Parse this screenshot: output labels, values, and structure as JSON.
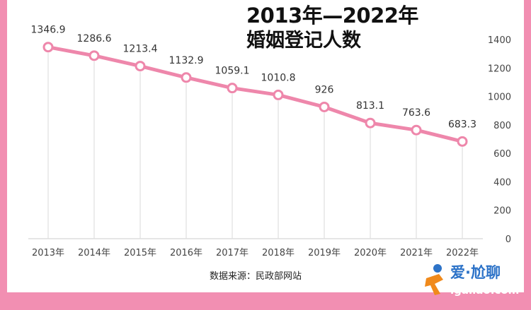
{
  "title_line1": "2013年—2022年",
  "title_line2": "婚姻登记人数",
  "source": "数据来源：民政部网站",
  "watermark": {
    "cn": "爱·尬聊",
    "url": "igaliao.com"
  },
  "colors": {
    "line": "#ee87ab",
    "frame": "#f28fb2",
    "grid": "#e6e6e6"
  },
  "chart_data": {
    "type": "line",
    "categories": [
      "2013年",
      "2014年",
      "2015年",
      "2016年",
      "2017年",
      "2018年",
      "2019年",
      "2020年",
      "2021年",
      "2022年"
    ],
    "values": [
      1346.9,
      1286.6,
      1213.4,
      1132.9,
      1059.1,
      1010.8,
      926,
      813.1,
      763.6,
      683.3
    ],
    "value_labels": [
      "1346.9",
      "1286.6",
      "1213.4",
      "1132.9",
      "1059.1",
      "1010.8",
      "926",
      "813.1",
      "763.6",
      "683.3"
    ],
    "yticks": [
      0,
      200,
      400,
      600,
      800,
      1000,
      1200,
      1400
    ],
    "ylim": [
      0,
      1400
    ],
    "y_axis_side": "right",
    "grid": "vertical"
  }
}
